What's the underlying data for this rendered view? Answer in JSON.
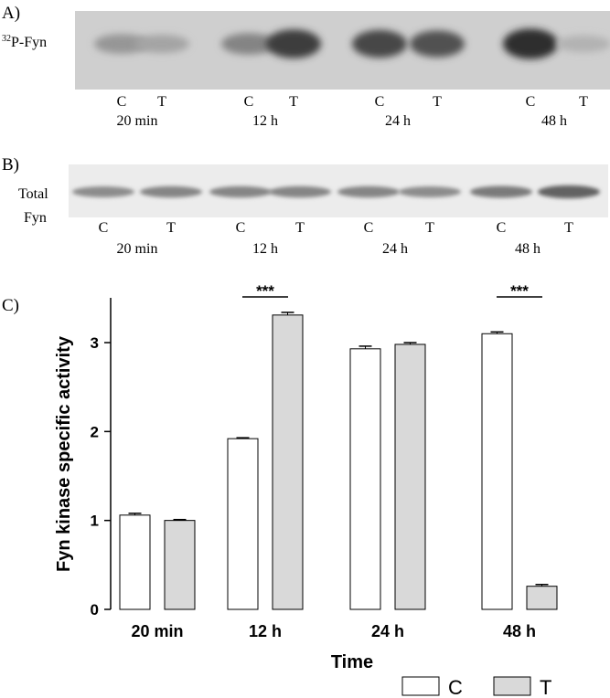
{
  "panel_a": {
    "label": "A)",
    "row_label_superscript": "32",
    "row_label": "P-Fyn",
    "lanes": [
      "C",
      "T",
      "C",
      "T",
      "C",
      "T",
      "C",
      "T"
    ],
    "lane_intensity": [
      0.28,
      0.2,
      0.38,
      0.78,
      0.72,
      0.66,
      0.86,
      0.12
    ],
    "groups": [
      "20 min",
      "12 h",
      "24 h",
      "48 h"
    ]
  },
  "panel_b": {
    "label": "B)",
    "row_label_line1": "Total",
    "row_label_line2": "Fyn",
    "lanes": [
      "C",
      "T",
      "C",
      "T",
      "C",
      "T",
      "C",
      "T"
    ],
    "lane_intensity": [
      0.5,
      0.55,
      0.55,
      0.55,
      0.55,
      0.5,
      0.62,
      0.78
    ],
    "groups": [
      "20 min",
      "12 h",
      "24 h",
      "48 h"
    ]
  },
  "panel_c_label": "C)",
  "chart_data": {
    "type": "bar",
    "categories": [
      "20 min",
      "12 h",
      "24 h",
      "48 h"
    ],
    "xlabel": "Time",
    "ylabel": "Fyn kinase specific activity",
    "ylim": [
      0,
      3.5
    ],
    "yticks": [
      0,
      1,
      2,
      3
    ],
    "series": [
      {
        "name": "C",
        "values": [
          1.06,
          1.92,
          2.93,
          3.1
        ],
        "errors": [
          0.02,
          0.01,
          0.03,
          0.02
        ],
        "color": "#ffffff"
      },
      {
        "name": "T",
        "values": [
          1.0,
          3.31,
          2.98,
          0.26
        ],
        "errors": [
          0.01,
          0.03,
          0.02,
          0.02
        ],
        "color": "#d9d9d9"
      }
    ],
    "significance": [
      {
        "category": "12 h",
        "label": "***"
      },
      {
        "category": "48 h",
        "label": "***"
      }
    ],
    "legend": {
      "placement": "bottom-right",
      "items": [
        "C",
        "T"
      ]
    }
  }
}
